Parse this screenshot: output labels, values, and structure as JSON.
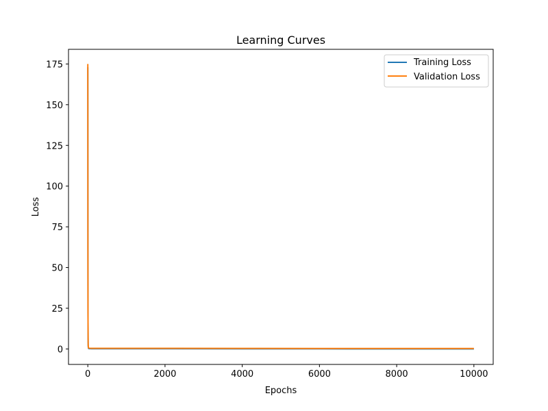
{
  "chart_data": {
    "type": "line",
    "title": "Learning Curves",
    "xlabel": "Epochs",
    "ylabel": "Loss",
    "xlim": [
      -500,
      10500
    ],
    "ylim": [
      -9.5,
      184
    ],
    "xticks": [
      0,
      2000,
      4000,
      6000,
      8000,
      10000
    ],
    "yticks": [
      0,
      25,
      50,
      75,
      100,
      125,
      150,
      175
    ],
    "grid": false,
    "legend_position": "top-right",
    "series": [
      {
        "name": "Training Loss",
        "color": "#1f77b4",
        "x": [
          0,
          1,
          2,
          3,
          5,
          8,
          10,
          15,
          20,
          30,
          50,
          100,
          200,
          500,
          1000,
          2000,
          4000,
          6000,
          8000,
          10000
        ],
        "y": [
          173,
          150,
          110,
          60,
          20,
          6,
          2,
          0.5,
          0.3,
          0.2,
          0.15,
          0.1,
          0.1,
          0.1,
          0.1,
          0.1,
          0.08,
          0.05,
          0.03,
          0.02
        ]
      },
      {
        "name": "Validation Loss",
        "color": "#ff7f0e",
        "x": [
          0,
          1,
          2,
          3,
          5,
          8,
          10,
          15,
          20,
          30,
          50,
          100,
          200,
          500,
          1000,
          2000,
          4000,
          6000,
          8000,
          10000
        ],
        "y": [
          175,
          152,
          112,
          62,
          22,
          7,
          2.5,
          0.8,
          0.6,
          0.5,
          0.45,
          0.4,
          0.4,
          0.4,
          0.4,
          0.4,
          0.35,
          0.3,
          0.3,
          0.3
        ]
      }
    ]
  }
}
